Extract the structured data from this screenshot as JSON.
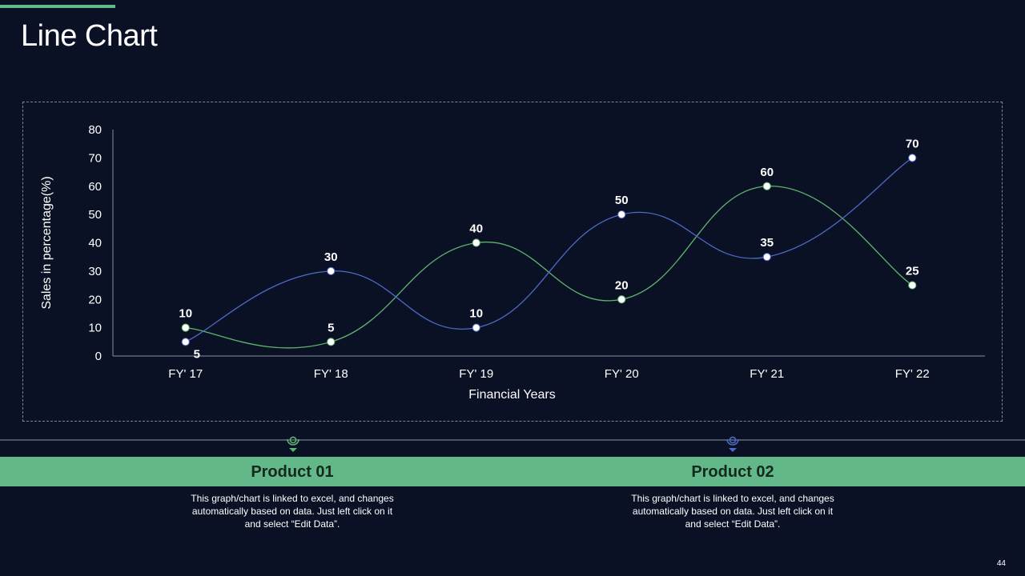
{
  "slide": {
    "title": "Line Chart",
    "page_number": "44",
    "accent_color": "#62b889",
    "background_color": "#0b1124"
  },
  "chart_data": {
    "type": "line",
    "smooth": true,
    "categories": [
      "FY' 17",
      "FY' 18",
      "FY' 19",
      "FY' 20",
      "FY' 21",
      "FY' 22"
    ],
    "series": [
      {
        "values": [
          10,
          5,
          40,
          20,
          60,
          25
        ],
        "color": "#5fb36f"
      },
      {
        "values": [
          5,
          30,
          10,
          50,
          35,
          70
        ],
        "color": "#4c69c4"
      }
    ],
    "xlabel": "Financial Years",
    "ylabel": "Sales in percentage(%)",
    "ylim": [
      0,
      80
    ],
    "yticks": [
      0,
      10,
      20,
      30,
      40,
      50,
      60,
      70,
      80
    ],
    "grid": false,
    "data_labels": true
  },
  "products": [
    {
      "title": "Product 01",
      "description": "This graph/chart is linked to excel, and changes automatically based on data. Just left click on it and select “Edit Data”.",
      "marker_color": "#5fb36f"
    },
    {
      "title": "Product 02",
      "description": "This graph/chart is linked to excel, and changes automatically based on data. Just left click on it and select “Edit Data”.",
      "marker_color": "#4c69c4"
    }
  ]
}
